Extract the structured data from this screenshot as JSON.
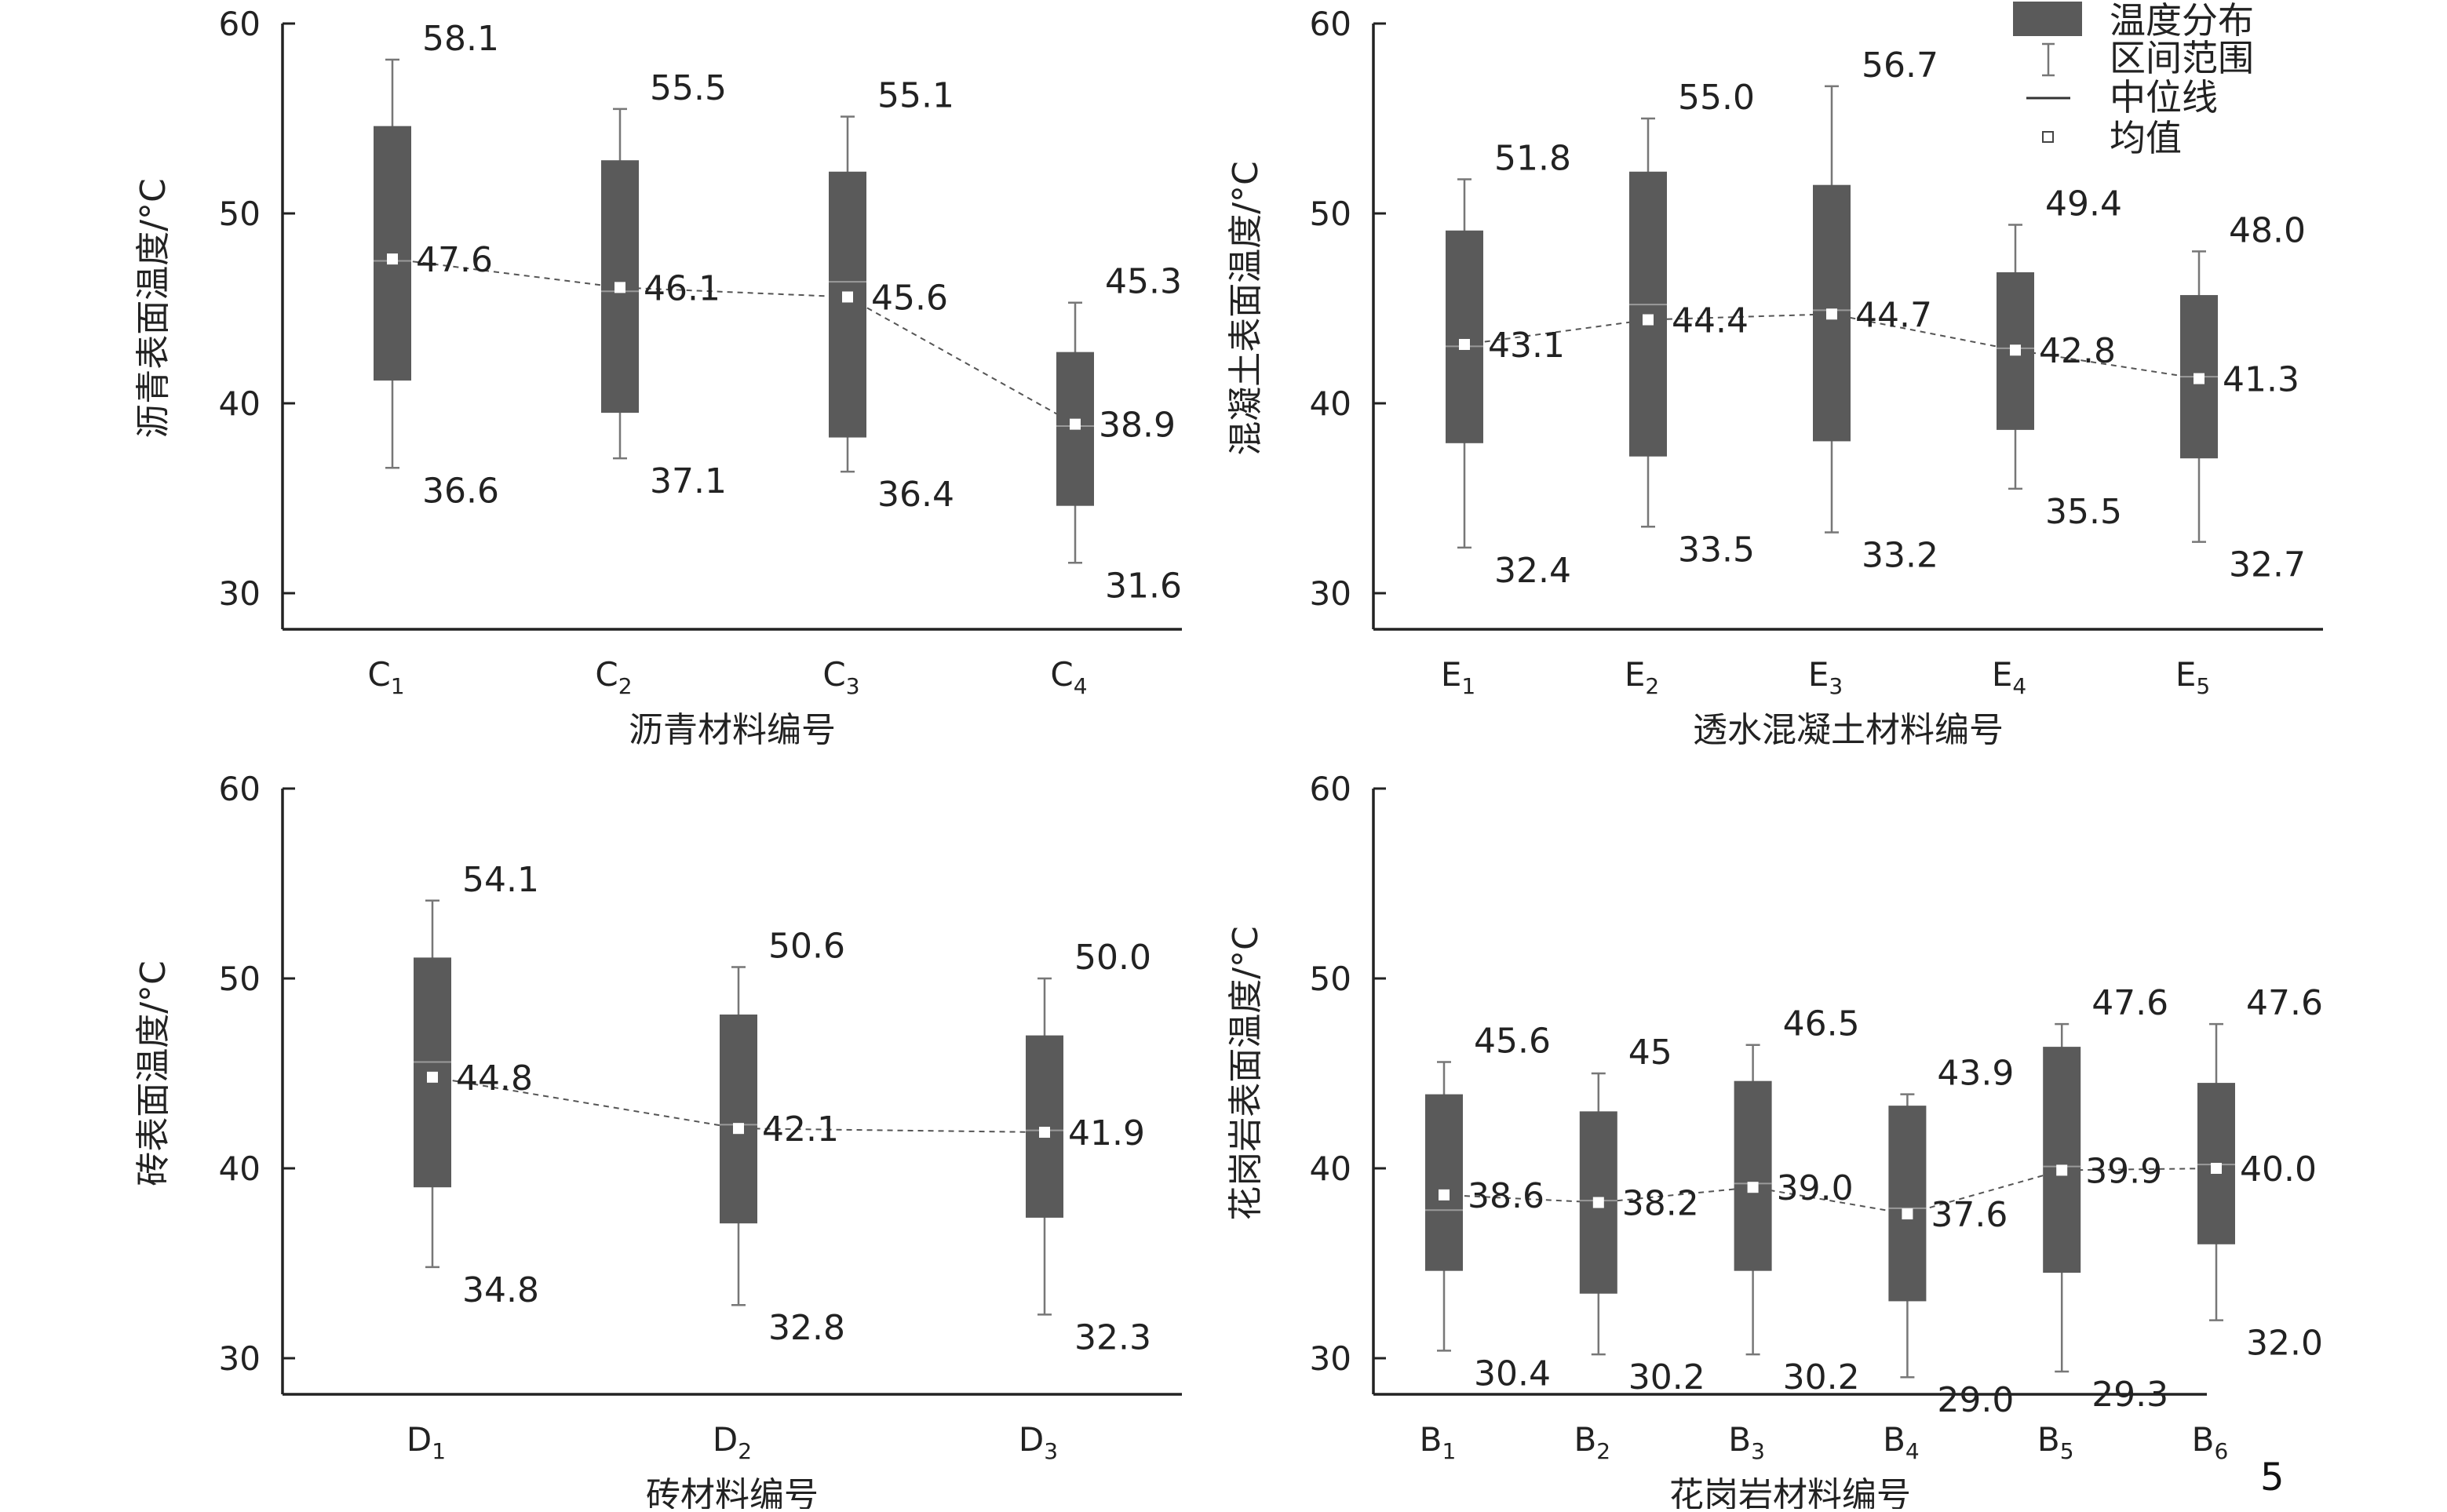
{
  "page_number": "5",
  "legend": {
    "box": "温度分布",
    "range": "区间范围",
    "median": "中位线",
    "mean": "均值"
  },
  "chart_data": [
    {
      "type": "box",
      "ylabel": "沥青表面温度/°C",
      "xlabel": "沥青材料编号",
      "ylim": [
        30,
        60
      ],
      "yticks": [
        30,
        40,
        50,
        60
      ],
      "categories": [
        {
          "letter": "C",
          "sub": "1"
        },
        {
          "letter": "C",
          "sub": "2"
        },
        {
          "letter": "C",
          "sub": "3"
        },
        {
          "letter": "C",
          "sub": "4"
        }
      ],
      "max": [
        58.1,
        55.5,
        55.1,
        45.3
      ],
      "q3": [
        54.6,
        52.8,
        52.2,
        42.7
      ],
      "median": [
        47.5,
        45.9,
        46.4,
        38.8
      ],
      "q1": [
        41.2,
        39.5,
        38.2,
        34.6
      ],
      "min": [
        36.6,
        37.1,
        36.4,
        31.6
      ],
      "mean": [
        47.6,
        46.1,
        45.6,
        38.9
      ],
      "max_labels": [
        "58.1",
        "55.5",
        "55.1",
        "45.3"
      ],
      "min_labels": [
        "36.6",
        "37.1",
        "36.4",
        "31.6"
      ],
      "mean_labels": [
        "47.6",
        "46.1",
        "45.6",
        "38.9"
      ]
    },
    {
      "type": "box",
      "ylabel": "混凝土表面温度/°C",
      "xlabel": "透水混凝土材料编号",
      "ylim": [
        30,
        60
      ],
      "yticks": [
        30,
        40,
        50,
        60
      ],
      "categories": [
        {
          "letter": "E",
          "sub": "1"
        },
        {
          "letter": "E",
          "sub": "2"
        },
        {
          "letter": "E",
          "sub": "3"
        },
        {
          "letter": "E",
          "sub": "4"
        },
        {
          "letter": "E",
          "sub": "5"
        }
      ],
      "max": [
        51.8,
        55.0,
        56.7,
        49.4,
        48.0
      ],
      "q3": [
        49.1,
        52.2,
        51.5,
        46.9,
        45.7
      ],
      "median": [
        43.0,
        45.2,
        44.9,
        42.9,
        41.4
      ],
      "q1": [
        37.9,
        37.2,
        38.0,
        38.6,
        37.1
      ],
      "min": [
        32.4,
        33.5,
        33.2,
        35.5,
        32.7
      ],
      "mean": [
        43.1,
        44.4,
        44.7,
        42.8,
        41.3
      ],
      "max_labels": [
        "51.8",
        "55.0",
        "56.7",
        "49.4",
        "48.0"
      ],
      "min_labels": [
        "32.4",
        "33.5",
        "33.2",
        "35.5",
        "32.7"
      ],
      "mean_labels": [
        "43.1",
        "44.4",
        "44.7",
        "42.8",
        "41.3"
      ]
    },
    {
      "type": "box",
      "ylabel": "砖表面温度/°C",
      "xlabel": "砖材料编号",
      "ylim": [
        30,
        60
      ],
      "yticks": [
        30,
        40,
        50,
        60
      ],
      "categories": [
        {
          "letter": "D",
          "sub": "1"
        },
        {
          "letter": "D",
          "sub": "2"
        },
        {
          "letter": "D",
          "sub": "3"
        }
      ],
      "max": [
        54.1,
        50.6,
        50.0
      ],
      "q3": [
        51.1,
        48.1,
        47.0
      ],
      "median": [
        45.6,
        42.3,
        42.0
      ],
      "q1": [
        39.0,
        37.1,
        37.4
      ],
      "min": [
        34.8,
        32.8,
        32.3
      ],
      "mean": [
        44.8,
        42.1,
        41.9
      ],
      "max_labels": [
        "54.1",
        "50.6",
        "50.0"
      ],
      "min_labels": [
        "34.8",
        "32.8",
        "32.3"
      ],
      "mean_labels": [
        "44.8",
        "42.1",
        "41.9"
      ]
    },
    {
      "type": "box",
      "ylabel": "花岗岩表面温度/°C",
      "xlabel": "花岗岩材料编号",
      "ylim": [
        30,
        60
      ],
      "yticks": [
        30,
        40,
        50,
        60
      ],
      "categories": [
        {
          "letter": "B",
          "sub": "1"
        },
        {
          "letter": "B",
          "sub": "2"
        },
        {
          "letter": "B",
          "sub": "3"
        },
        {
          "letter": "B",
          "sub": "4"
        },
        {
          "letter": "B",
          "sub": "5"
        },
        {
          "letter": "B",
          "sub": "6"
        }
      ],
      "max": [
        45.6,
        45.0,
        46.5,
        43.9,
        47.6,
        47.6
      ],
      "q3": [
        43.9,
        43.0,
        44.6,
        43.3,
        46.4,
        44.5
      ],
      "median": [
        37.8,
        38.3,
        39.2,
        37.9,
        40.1,
        40.2
      ],
      "q1": [
        34.6,
        33.4,
        34.6,
        33.0,
        34.5,
        36.0
      ],
      "min": [
        30.4,
        30.2,
        30.2,
        29.0,
        29.3,
        32.0
      ],
      "mean": [
        38.6,
        38.2,
        39.0,
        37.6,
        39.9,
        40.0
      ],
      "max_labels": [
        "45.6",
        "45",
        "46.5",
        "43.9",
        "47.6",
        "47.6"
      ],
      "min_labels": [
        "30.4",
        "30.2",
        "30.2",
        "29.0",
        "29.3",
        "32.0"
      ],
      "mean_labels": [
        "38.6",
        "38.2",
        "39.0",
        "37.6",
        "39.9",
        "40.0"
      ]
    }
  ]
}
